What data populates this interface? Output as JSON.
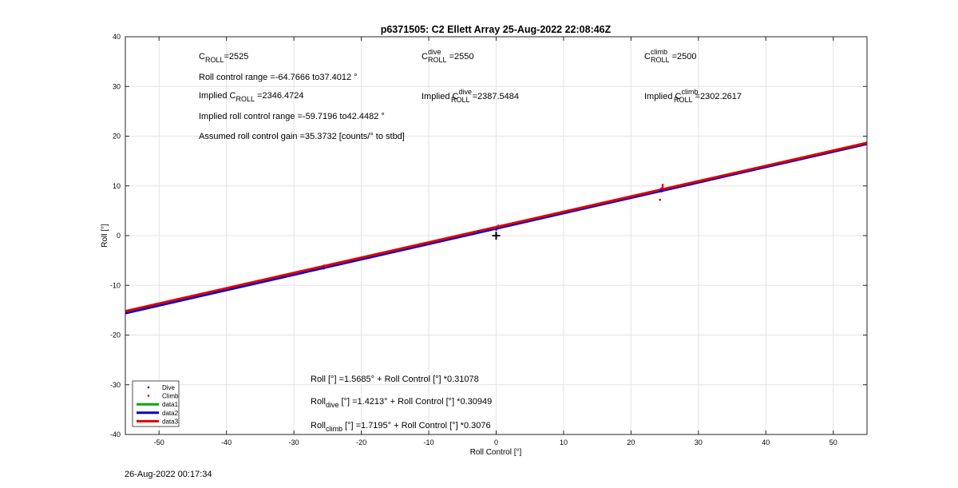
{
  "chart_data": {
    "type": "line",
    "title": "p6371505: C2 Ellett Array 25-Aug-2022 22:08:46Z",
    "xlabel": "Roll Control [°]",
    "ylabel": "Roll [°]",
    "xlim": [
      -55,
      55
    ],
    "ylim": [
      -40,
      40
    ],
    "xticks": [
      -50,
      -40,
      -30,
      -20,
      -10,
      0,
      10,
      20,
      30,
      40,
      50
    ],
    "yticks": [
      -40,
      -30,
      -20,
      -10,
      0,
      10,
      20,
      30,
      40
    ],
    "xtick_labels": [
      "-50",
      "-40",
      "-30",
      "-20",
      "-10",
      "0",
      "10",
      "20",
      "30",
      "40",
      "50"
    ],
    "ytick_labels": [
      "-40",
      "-30",
      "-20",
      "-10",
      "0",
      "10",
      "20",
      "30",
      "40"
    ],
    "grid": true,
    "legend_position": "bottom-left",
    "legend": [
      {
        "label": "Dive",
        "kind": "marker",
        "color": "#0000ff"
      },
      {
        "label": "Climb",
        "kind": "marker",
        "color": "#ff0000"
      },
      {
        "label": "data1",
        "kind": "line",
        "color": "#00aa00"
      },
      {
        "label": "data2",
        "kind": "line",
        "color": "#0000cc"
      },
      {
        "label": "data3",
        "kind": "line",
        "color": "#dd0000"
      }
    ],
    "series": [
      {
        "name": "Dive",
        "kind": "points",
        "color": "#0000ff",
        "x": [
          -25.6,
          -25.5,
          -2.6,
          -2.0,
          -1.7,
          0.0,
          0.3,
          24.3,
          24.5,
          24.6
        ],
        "y": [
          -6.6,
          -6.3,
          0.7,
          0.8,
          1.0,
          1.2,
          1.5,
          9.0,
          8.9,
          9.3
        ]
      },
      {
        "name": "Climb",
        "kind": "points",
        "color": "#ff0000",
        "x": [
          -25.5,
          -25.3,
          -1.8,
          -0.2,
          0.3,
          0.5,
          24.3,
          24.5,
          24.7,
          24.7
        ],
        "y": [
          -6.0,
          -6.2,
          1.2,
          1.6,
          2.0,
          1.8,
          7.2,
          9.5,
          9.8,
          10.2
        ]
      },
      {
        "name": "data1",
        "kind": "fit",
        "color": "#00aa00",
        "intercept": 1.5685,
        "slope": 0.31078,
        "width": 3
      },
      {
        "name": "data2",
        "kind": "fit",
        "color": "#0000cc",
        "intercept": 1.4213,
        "slope": 0.30949,
        "width": 3
      },
      {
        "name": "data3",
        "kind": "fit",
        "color": "#dd0000",
        "intercept": 1.7195,
        "slope": 0.3076,
        "width": 3
      }
    ],
    "center_marker": {
      "x": 0,
      "y": 0,
      "symbol": "+"
    },
    "annotations": {
      "croll": {
        "base": "C",
        "sub": "ROLL",
        "value": "=2525"
      },
      "croll_dive": {
        "base": "C",
        "sup": "dive",
        "sub": "ROLL",
        "value": " =2550"
      },
      "croll_climb": {
        "base": "C",
        "sup": "climb",
        "sub": "ROLL",
        "value": " =2500"
      },
      "roll_range": "Roll control range =-64.7666 to37.4012 °",
      "implied_croll": {
        "pre": "Implied C",
        "sub": "ROLL",
        "value": " =2346.4724"
      },
      "implied_croll_dive": {
        "pre": "Implied C",
        "sup": "dive",
        "sub": "ROLL",
        "value": " =2387.5484"
      },
      "implied_croll_climb": {
        "pre": "Implied C",
        "sup": "climb",
        "sub": "ROLL",
        "value": " =2302.2617"
      },
      "implied_range": "Implied roll control range =-59.7196 to42.4482 °",
      "assumed_gain": "Assumed roll control gain =35.3732 [counts/° to stbd]",
      "fit_all": "Roll [°] =1.5685° + Roll Control [°] *0.31078",
      "fit_dive": {
        "base": "Roll",
        "sub": "dive",
        "value": " [°] =1.4213° + Roll Control [°] *0.30949"
      },
      "fit_climb": {
        "base": "Roll",
        "sub": "climb",
        "value": " [°] =1.7195° + Roll Control [°] *0.3076"
      }
    }
  },
  "timestamp": "26-Aug-2022 00:17:34"
}
